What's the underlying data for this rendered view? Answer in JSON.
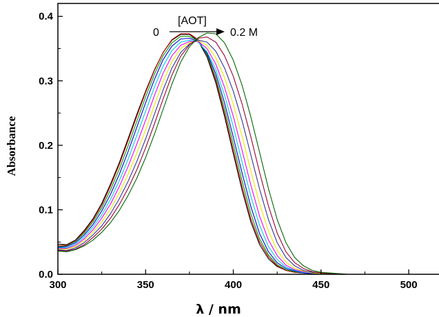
{
  "chart_data": {
    "type": "line",
    "title": "",
    "xlabel": "λ  / nm",
    "ylabel": "Absorbance",
    "xlim": [
      300,
      520
    ],
    "ylim": [
      0,
      0.42
    ],
    "x_ticks": [
      300,
      350,
      400,
      450,
      500
    ],
    "x_tick_labels": [
      "300",
      "350",
      "400",
      "450",
      "500"
    ],
    "y_ticks": [
      0.0,
      0.1,
      0.2,
      0.3,
      0.4
    ],
    "y_tick_labels": [
      "0.0",
      "0.1",
      "0.2",
      "0.3",
      "0.4"
    ],
    "grid": false,
    "annotation": {
      "start_label": "0",
      "arrow_label": "[AOT]",
      "end_label": "0.2 M"
    },
    "x": [
      300,
      305,
      310,
      315,
      320,
      325,
      330,
      335,
      340,
      345,
      350,
      355,
      360,
      365,
      370,
      375,
      380,
      385,
      390,
      395,
      400,
      405,
      410,
      415,
      420,
      425,
      430,
      435,
      440,
      445,
      450,
      455,
      460,
      465,
      470,
      475,
      480,
      490,
      500,
      510,
      520
    ],
    "series": [
      {
        "color": "#000000",
        "values": [
          0.047,
          0.046,
          0.053,
          0.068,
          0.086,
          0.11,
          0.14,
          0.173,
          0.21,
          0.248,
          0.284,
          0.317,
          0.344,
          0.363,
          0.372,
          0.372,
          0.362,
          0.337,
          0.297,
          0.245,
          0.187,
          0.13,
          0.081,
          0.046,
          0.024,
          0.012,
          0.006,
          0.003,
          0.002,
          0.001,
          0.001,
          0.001,
          0.0,
          0.0,
          0.0,
          0.0,
          0.0,
          0.0,
          0.0,
          0.0,
          0.0
        ]
      },
      {
        "color": "#cc0000",
        "values": [
          0.045,
          0.045,
          0.052,
          0.066,
          0.084,
          0.107,
          0.137,
          0.17,
          0.207,
          0.245,
          0.282,
          0.316,
          0.344,
          0.364,
          0.373,
          0.373,
          0.364,
          0.34,
          0.301,
          0.25,
          0.193,
          0.136,
          0.086,
          0.05,
          0.027,
          0.013,
          0.006,
          0.003,
          0.002,
          0.001,
          0.001,
          0.001,
          0.0,
          0.0,
          0.0,
          0.0,
          0.0,
          0.0,
          0.0,
          0.0,
          0.0
        ]
      },
      {
        "color": "#009900",
        "values": [
          0.043,
          0.044,
          0.051,
          0.064,
          0.081,
          0.103,
          0.131,
          0.163,
          0.199,
          0.237,
          0.275,
          0.31,
          0.339,
          0.359,
          0.369,
          0.369,
          0.362,
          0.341,
          0.305,
          0.257,
          0.202,
          0.145,
          0.094,
          0.055,
          0.03,
          0.015,
          0.007,
          0.004,
          0.002,
          0.001,
          0.001,
          0.001,
          0.0,
          0.0,
          0.0,
          0.0,
          0.0,
          0.0,
          0.0,
          0.0,
          0.0
        ]
      },
      {
        "color": "#0000cc",
        "values": [
          0.042,
          0.043,
          0.049,
          0.061,
          0.077,
          0.098,
          0.124,
          0.155,
          0.19,
          0.228,
          0.266,
          0.302,
          0.333,
          0.354,
          0.365,
          0.366,
          0.361,
          0.343,
          0.311,
          0.266,
          0.213,
          0.157,
          0.105,
          0.063,
          0.035,
          0.018,
          0.009,
          0.005,
          0.002,
          0.001,
          0.001,
          0.001,
          0.0,
          0.0,
          0.0,
          0.0,
          0.0,
          0.0,
          0.0,
          0.0,
          0.0
        ]
      },
      {
        "color": "#00ccee",
        "values": [
          0.041,
          0.041,
          0.047,
          0.058,
          0.073,
          0.092,
          0.116,
          0.145,
          0.178,
          0.215,
          0.253,
          0.29,
          0.323,
          0.347,
          0.36,
          0.363,
          0.36,
          0.345,
          0.318,
          0.278,
          0.229,
          0.174,
          0.121,
          0.076,
          0.043,
          0.023,
          0.011,
          0.006,
          0.003,
          0.002,
          0.001,
          0.001,
          0.0,
          0.0,
          0.0,
          0.0,
          0.0,
          0.0,
          0.0,
          0.0,
          0.0
        ]
      },
      {
        "color": "#ee00ee",
        "values": [
          0.04,
          0.04,
          0.045,
          0.055,
          0.069,
          0.087,
          0.109,
          0.136,
          0.167,
          0.202,
          0.239,
          0.277,
          0.312,
          0.339,
          0.355,
          0.361,
          0.361,
          0.35,
          0.326,
          0.29,
          0.245,
          0.192,
          0.138,
          0.09,
          0.053,
          0.029,
          0.014,
          0.007,
          0.004,
          0.002,
          0.001,
          0.001,
          0.0,
          0.0,
          0.0,
          0.0,
          0.0,
          0.0,
          0.0,
          0.0,
          0.0
        ]
      },
      {
        "color": "#e8e800",
        "values": [
          0.039,
          0.039,
          0.043,
          0.052,
          0.065,
          0.081,
          0.101,
          0.126,
          0.155,
          0.188,
          0.224,
          0.262,
          0.299,
          0.33,
          0.35,
          0.359,
          0.362,
          0.355,
          0.336,
          0.305,
          0.264,
          0.214,
          0.16,
          0.109,
          0.067,
          0.037,
          0.019,
          0.009,
          0.005,
          0.002,
          0.001,
          0.001,
          0.0,
          0.0,
          0.0,
          0.0,
          0.0,
          0.0,
          0.0,
          0.0,
          0.0
        ]
      },
      {
        "color": "#333399",
        "values": [
          0.038,
          0.037,
          0.041,
          0.049,
          0.061,
          0.075,
          0.094,
          0.117,
          0.144,
          0.175,
          0.21,
          0.248,
          0.286,
          0.32,
          0.344,
          0.357,
          0.363,
          0.36,
          0.346,
          0.32,
          0.284,
          0.238,
          0.185,
          0.132,
          0.085,
          0.049,
          0.026,
          0.013,
          0.006,
          0.003,
          0.002,
          0.001,
          0.0,
          0.0,
          0.0,
          0.0,
          0.0,
          0.0,
          0.0,
          0.0,
          0.0
        ]
      },
      {
        "color": "#990033",
        "values": [
          0.037,
          0.036,
          0.039,
          0.046,
          0.057,
          0.07,
          0.087,
          0.108,
          0.133,
          0.162,
          0.196,
          0.233,
          0.272,
          0.309,
          0.338,
          0.356,
          0.366,
          0.368,
          0.36,
          0.339,
          0.307,
          0.264,
          0.213,
          0.158,
          0.106,
          0.064,
          0.035,
          0.018,
          0.009,
          0.004,
          0.002,
          0.001,
          0.001,
          0.0,
          0.0,
          0.0,
          0.0,
          0.0,
          0.0,
          0.0,
          0.0
        ]
      },
      {
        "color": "#006600",
        "values": [
          0.036,
          0.035,
          0.038,
          0.044,
          0.053,
          0.065,
          0.08,
          0.099,
          0.122,
          0.149,
          0.181,
          0.217,
          0.256,
          0.295,
          0.329,
          0.353,
          0.367,
          0.374,
          0.373,
          0.359,
          0.332,
          0.293,
          0.244,
          0.189,
          0.133,
          0.085,
          0.049,
          0.026,
          0.013,
          0.006,
          0.003,
          0.002,
          0.001,
          0.0,
          0.0,
          0.0,
          0.0,
          0.0,
          0.0,
          0.0,
          0.0
        ]
      }
    ]
  }
}
